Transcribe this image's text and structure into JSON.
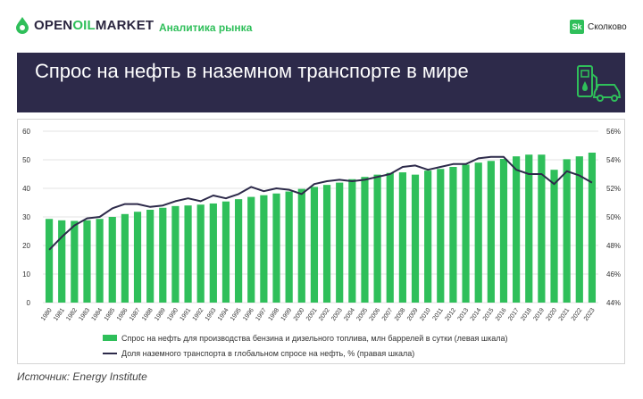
{
  "header": {
    "brand_prefix": "OPEN",
    "brand_oil": "OIL",
    "brand_suffix": "MARKET",
    "tagline": "Аналитика рынка",
    "partner_badge": "Sk",
    "partner_name": "Сколково"
  },
  "banner": {
    "title": "Спрос на нефть в наземном транспорте в мире",
    "icon": "fuel-pump-car-icon"
  },
  "source": "Источник: Energy Institute",
  "colors": {
    "bar": "#2fbf5a",
    "line": "#2d2a4a",
    "banner": "#2d2a4a",
    "accent": "#2fbf5a"
  },
  "chart_data": {
    "type": "bar",
    "categories": [
      "1980",
      "1981",
      "1982",
      "1983",
      "1984",
      "1985",
      "1986",
      "1987",
      "1988",
      "1989",
      "1990",
      "1991",
      "1992",
      "1993",
      "1994",
      "1995",
      "1996",
      "1997",
      "1998",
      "1999",
      "2000",
      "2001",
      "2002",
      "2003",
      "2004",
      "2005",
      "2006",
      "2007",
      "2008",
      "2009",
      "2010",
      "2011",
      "2012",
      "2013",
      "2014",
      "2015",
      "2016",
      "2017",
      "2018",
      "2019",
      "2020",
      "2021",
      "2022",
      "2023"
    ],
    "series": [
      {
        "name": "Спрос на нефть для производства бензина и дизельного топлива, млн баррелей в сутки (левая шкала)",
        "type": "bar",
        "axis": "left",
        "values": [
          29.3,
          28.8,
          28.6,
          28.8,
          29.3,
          30.0,
          31.0,
          31.8,
          32.5,
          33.2,
          33.8,
          34.0,
          34.3,
          34.7,
          35.4,
          36.2,
          37.0,
          37.6,
          38.2,
          38.9,
          39.8,
          40.5,
          41.2,
          42.0,
          43.2,
          44.0,
          44.8,
          45.4,
          45.6,
          44.8,
          46.2,
          46.8,
          47.5,
          48.3,
          49.0,
          49.6,
          50.3,
          51.2,
          51.8,
          51.8,
          46.5,
          50.2,
          51.2,
          52.5
        ]
      },
      {
        "name": "Доля наземного транспорта в глобальном спросе на нефть, % (правая шкала)",
        "type": "line",
        "axis": "right",
        "values": [
          47.7,
          48.6,
          49.4,
          49.9,
          50.0,
          50.6,
          50.9,
          50.9,
          50.7,
          50.8,
          51.1,
          51.3,
          51.1,
          51.5,
          51.3,
          51.6,
          52.1,
          51.8,
          52.0,
          51.9,
          51.6,
          52.3,
          52.5,
          52.6,
          52.5,
          52.6,
          52.8,
          53.0,
          53.5,
          53.6,
          53.3,
          53.5,
          53.7,
          53.7,
          54.1,
          54.2,
          54.2,
          53.3,
          53.0,
          53.0,
          52.3,
          53.2,
          52.9,
          52.4
        ]
      }
    ],
    "ylim_left": [
      0,
      60
    ],
    "yticks_left": [
      "0",
      "10",
      "20",
      "30",
      "40",
      "50",
      "60"
    ],
    "ylim_right": [
      44,
      56
    ],
    "yticks_right": [
      "44%",
      "46%",
      "48%",
      "50%",
      "52%",
      "54%",
      "56%"
    ],
    "legend_position": "bottom",
    "grid": true
  }
}
